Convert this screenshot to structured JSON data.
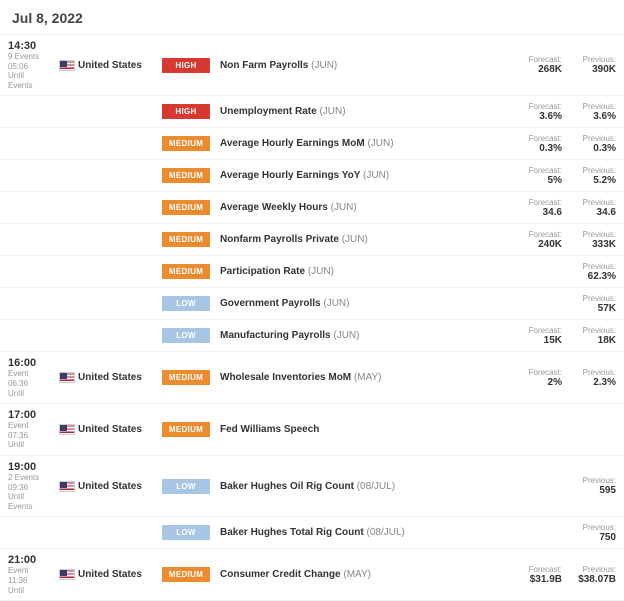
{
  "dateHeader": "Jul 8, 2022",
  "labels": {
    "forecast": "Forecast:",
    "previous": "Previous:"
  },
  "impactLabels": {
    "HIGH": "HIGH",
    "MEDIUM": "MEDIUM",
    "LOW": "LOW"
  },
  "blocks": [
    {
      "time": "14:30",
      "countdown": "05:06",
      "until": "Until",
      "eventCount": "9 Events",
      "country": "United States",
      "flag": "us",
      "rows": [
        {
          "impact": "HIGH",
          "name": "Non Farm Payrolls",
          "period": "(JUN)",
          "forecast": "268K",
          "previous": "390K"
        },
        {
          "impact": "HIGH",
          "name": "Unemployment Rate",
          "period": "(JUN)",
          "forecast": "3.6%",
          "previous": "3.6%"
        },
        {
          "impact": "MEDIUM",
          "name": "Average Hourly Earnings MoM",
          "period": "(JUN)",
          "forecast": "0.3%",
          "previous": "0.3%"
        },
        {
          "impact": "MEDIUM",
          "name": "Average Hourly Earnings YoY",
          "period": "(JUN)",
          "forecast": "5%",
          "previous": "5.2%"
        },
        {
          "impact": "MEDIUM",
          "name": "Average Weekly Hours",
          "period": "(JUN)",
          "forecast": "34.6",
          "previous": "34.6"
        },
        {
          "impact": "MEDIUM",
          "name": "Nonfarm Payrolls Private",
          "period": "(JUN)",
          "forecast": "240K",
          "previous": "333K"
        },
        {
          "impact": "MEDIUM",
          "name": "Participation Rate",
          "period": "(JUN)",
          "forecast": "",
          "previous": "62.3%"
        },
        {
          "impact": "LOW",
          "name": "Government Payrolls",
          "period": "(JUN)",
          "forecast": "",
          "previous": "57K"
        },
        {
          "impact": "LOW",
          "name": "Manufacturing Payrolls",
          "period": "(JUN)",
          "forecast": "15K",
          "previous": "18K"
        }
      ]
    },
    {
      "time": "16:00",
      "countdown": "06:36",
      "until": "Until",
      "eventCount": "Event",
      "country": "United States",
      "flag": "us",
      "rows": [
        {
          "impact": "MEDIUM",
          "name": "Wholesale Inventories MoM",
          "period": "(MAY)",
          "forecast": "2%",
          "previous": "2.3%"
        }
      ]
    },
    {
      "time": "17:00",
      "countdown": "07:36",
      "until": "Until",
      "eventCount": "Event",
      "country": "United States",
      "flag": "us",
      "rows": [
        {
          "impact": "MEDIUM",
          "name": "Fed Williams Speech",
          "period": "",
          "forecast": "",
          "previous": ""
        }
      ]
    },
    {
      "time": "19:00",
      "countdown": "09:36",
      "until": "Until",
      "eventCount": "2 Events",
      "country": "United States",
      "flag": "us",
      "rows": [
        {
          "impact": "LOW",
          "name": "Baker Hughes Oil Rig Count",
          "period": "(08/JUL)",
          "forecast": "",
          "previous": "595"
        },
        {
          "impact": "LOW",
          "name": "Baker Hughes Total Rig Count",
          "period": "(08/JUL)",
          "forecast": "",
          "previous": "750"
        }
      ]
    },
    {
      "time": "21:00",
      "countdown": "11:36",
      "until": "Until",
      "eventCount": "Event",
      "country": "United States",
      "flag": "us",
      "rows": [
        {
          "impact": "MEDIUM",
          "name": "Consumer Credit Change",
          "period": "(MAY)",
          "forecast": "$31.9B",
          "previous": "$38.07B"
        }
      ]
    }
  ]
}
